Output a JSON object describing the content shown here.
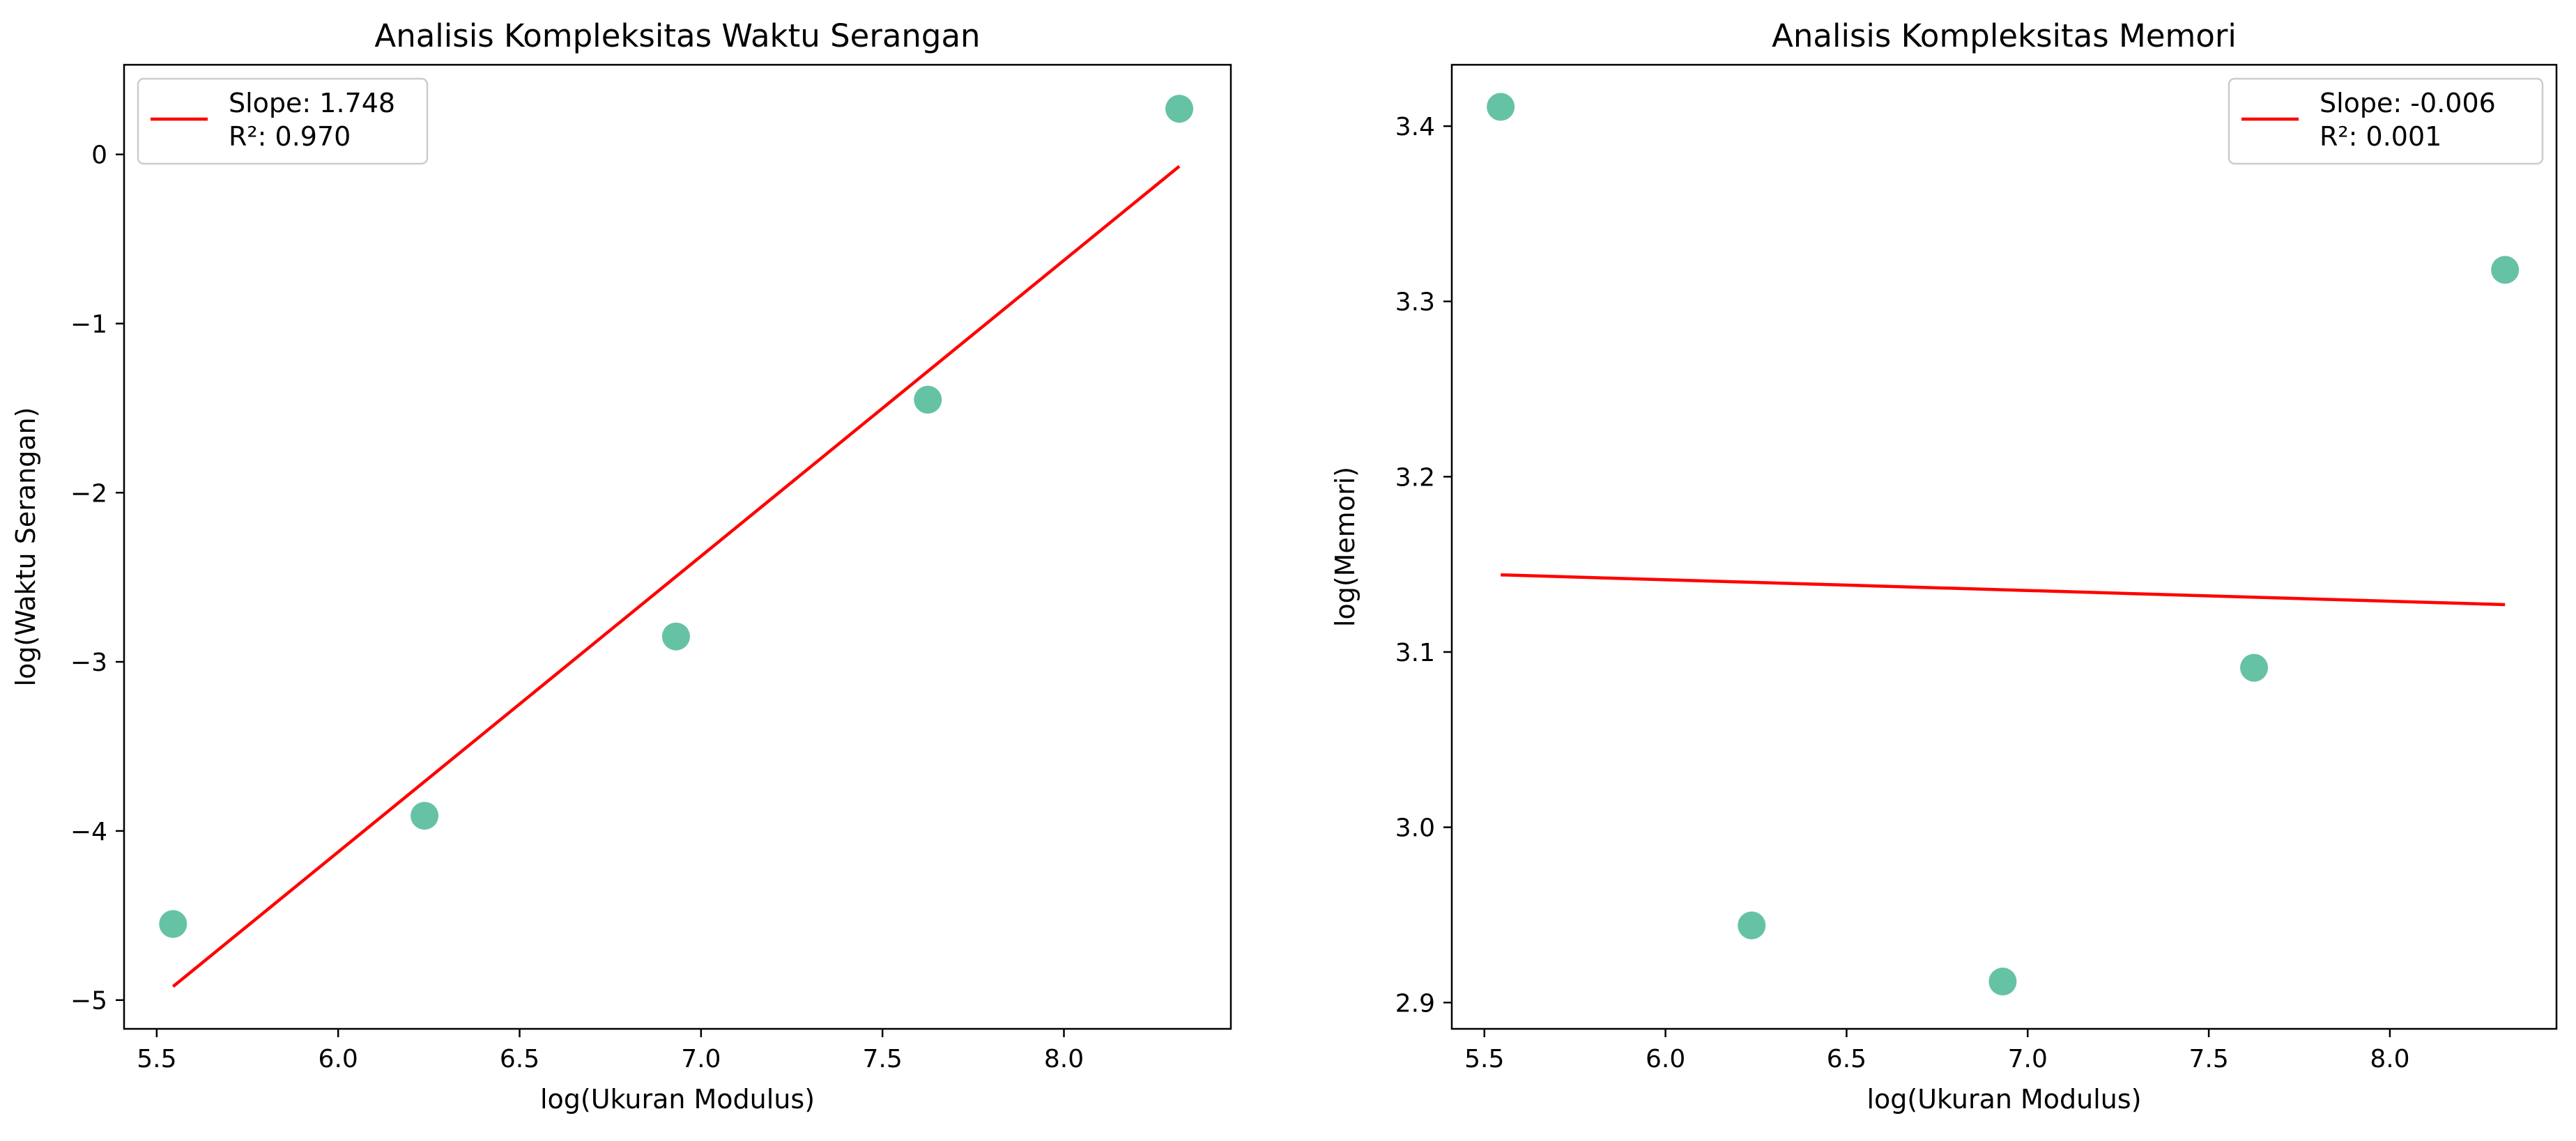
{
  "chart_data": [
    {
      "type": "scatter",
      "title": "Analisis Kompleksitas Waktu Serangan",
      "xlabel": "log(Ukuran Modulus)",
      "ylabel": "log(Waktu Serangan)",
      "xlim": [
        5.41,
        8.46
      ],
      "ylim": [
        -5.17,
        0.53
      ],
      "xticks": [
        5.5,
        6.0,
        6.5,
        7.0,
        7.5,
        8.0
      ],
      "yticks": [
        -5,
        -4,
        -3,
        -2,
        -1,
        0
      ],
      "xtick_labels": [
        "5.5",
        "6.0",
        "6.5",
        "7.0",
        "7.5",
        "8.0"
      ],
      "ytick_labels": [
        "−5",
        "−4",
        "−3",
        "−2",
        "−1",
        "0"
      ],
      "points": {
        "x": [
          5.545,
          6.238,
          6.931,
          7.625,
          8.318
        ],
        "y": [
          -4.55,
          -3.91,
          -2.85,
          -1.45,
          0.27
        ],
        "color": "#66c2a5"
      },
      "fit_line": {
        "x": [
          5.545,
          8.318
        ],
        "y": [
          -4.92,
          -0.07
        ],
        "color": "#ff0000"
      },
      "legend": {
        "position": "upper-left",
        "lines": [
          "Slope: 1.748",
          "R²: 0.970"
        ]
      },
      "grid": false
    },
    {
      "type": "scatter",
      "title": "Analisis Kompleksitas Memori",
      "xlabel": "log(Ukuran Modulus)",
      "ylabel": "log(Memori)",
      "xlim": [
        5.41,
        8.46
      ],
      "ylim": [
        2.885,
        3.435
      ],
      "xticks": [
        5.5,
        6.0,
        6.5,
        7.0,
        7.5,
        8.0
      ],
      "yticks": [
        2.9,
        3.0,
        3.1,
        3.2,
        3.3,
        3.4
      ],
      "xtick_labels": [
        "5.5",
        "6.0",
        "6.5",
        "7.0",
        "7.5",
        "8.0"
      ],
      "ytick_labels": [
        "2.9",
        "3.0",
        "3.1",
        "3.2",
        "3.3",
        "3.4"
      ],
      "points": {
        "x": [
          5.545,
          6.238,
          6.931,
          7.625,
          8.318
        ],
        "y": [
          3.411,
          2.944,
          2.912,
          3.091,
          3.318
        ],
        "color": "#66c2a5"
      },
      "fit_line": {
        "x": [
          5.545,
          8.318
        ],
        "y": [
          3.144,
          3.127
        ],
        "color": "#ff0000"
      },
      "legend": {
        "position": "upper-right",
        "lines": [
          "Slope: -0.006",
          "R²: 0.001"
        ]
      },
      "grid": false
    }
  ]
}
